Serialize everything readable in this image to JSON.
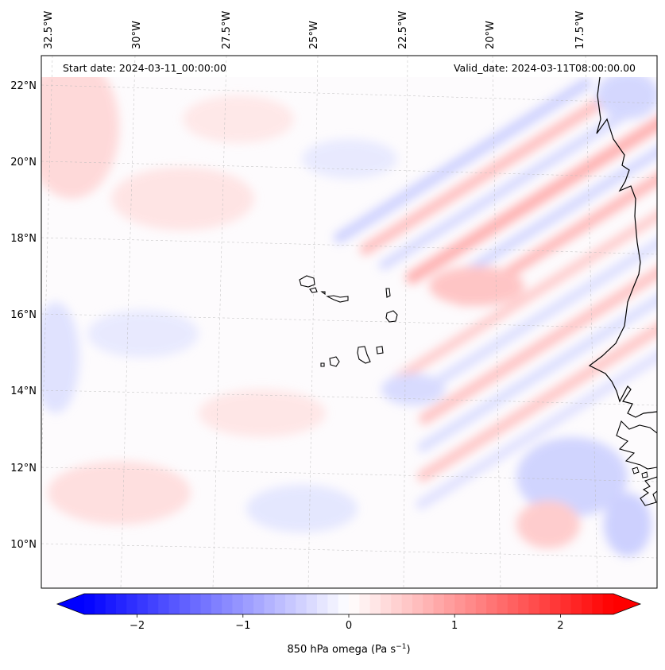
{
  "header": {
    "start_date": "Start date: 2024-03-11_00:00:00",
    "valid_date": "Valid_date: 2024-03-11T08:00:00.00"
  },
  "top_lon_labels": [
    "32.5°W",
    "30°W",
    "27.5°W",
    "25°W",
    "22.5°W",
    "20°W",
    "17.5°W"
  ],
  "left_lat_labels": [
    "22°N",
    "20°N",
    "18°N",
    "16°N",
    "14°N",
    "12°N",
    "10°N"
  ],
  "colorbar": {
    "label_prefix": "850 hPa omega (Pa s",
    "label_sup": "−1",
    "label_suffix": ")",
    "ticks": [
      "−2",
      "−1",
      "0",
      "1",
      "2"
    ],
    "tick_values": [
      -2,
      -1,
      0,
      1,
      2
    ],
    "range": [
      -2.5,
      2.5
    ],
    "colormap": "bwr",
    "color_min": "#0000ff",
    "color_mid": "#ffffff",
    "color_max": "#ff0000",
    "extend": "both"
  },
  "colors": {
    "coastline": "#000000",
    "gridline": "#bbbbbb"
  }
}
